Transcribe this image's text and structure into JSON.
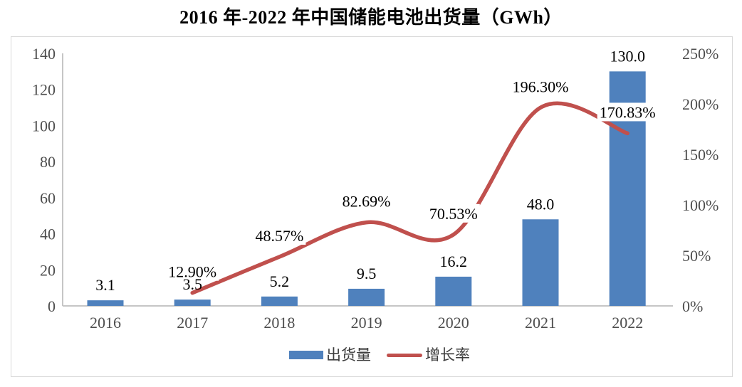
{
  "title": "2016 年-2022 年中国储能电池出货量（GWh）",
  "chart_data": {
    "type": "bar+line-combo",
    "title": "2016 年-2022 年中国储能电池出货量（GWh）",
    "categories": [
      "2016",
      "2017",
      "2018",
      "2019",
      "2020",
      "2021",
      "2022"
    ],
    "series": [
      {
        "name": "出货量",
        "chart_type": "bar",
        "axis": "left",
        "unit": "GWh",
        "values": [
          3.1,
          3.5,
          5.2,
          9.5,
          16.2,
          48.0,
          130.0
        ],
        "value_labels": [
          "3.1",
          "3.5",
          "5.2",
          "9.5",
          "16.2",
          "48.0",
          "130.0"
        ],
        "color": "#4f81bd"
      },
      {
        "name": "增长率",
        "chart_type": "line",
        "axis": "right",
        "smooth": true,
        "values": [
          null,
          12.9,
          48.57,
          82.69,
          70.53,
          196.3,
          170.83
        ],
        "value_labels": [
          null,
          "12.90%",
          "48.57%",
          "82.69%",
          "70.53%",
          "196.30%",
          "170.83%"
        ],
        "color": "#c0504d"
      }
    ],
    "left_axis": {
      "min": 0,
      "max": 140,
      "tick_labels": [
        "0",
        "20",
        "40",
        "60",
        "80",
        "100",
        "120",
        "140"
      ]
    },
    "right_axis": {
      "min": 0,
      "max": 250,
      "tick_labels": [
        "0%",
        "50%",
        "100%",
        "150%",
        "200%",
        "250%"
      ]
    },
    "legend": {
      "position": "bottom",
      "items": [
        {
          "label": "出货量",
          "marker": "rect",
          "color": "#4f81bd"
        },
        {
          "label": "增长率",
          "marker": "line",
          "color": "#c0504d"
        }
      ]
    },
    "grid": false,
    "styles": {
      "axis_line_color": "#c6c6c6",
      "tick_text_color": "#4d4d4d",
      "data_label_color": "#000000",
      "data_label_bg": "#ffffff",
      "plot_border_color": "#d9d9d9",
      "background": "#ffffff"
    }
  }
}
